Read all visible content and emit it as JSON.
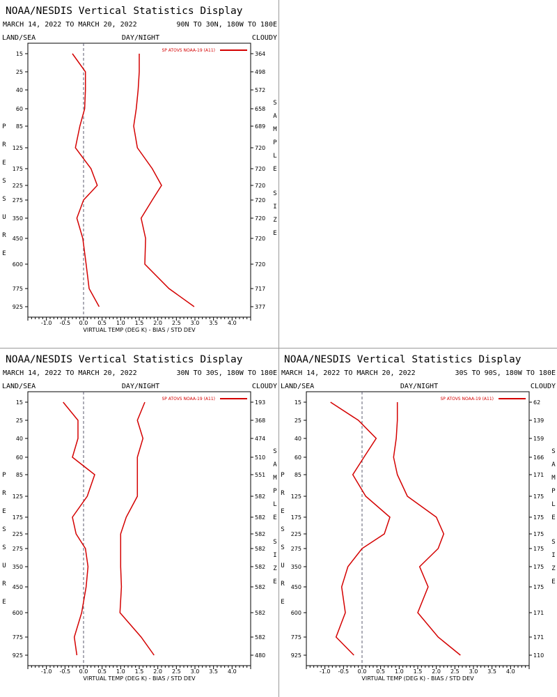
{
  "chart_data": [
    {
      "type": "line",
      "title": "NOAA/NESDIS Vertical Statistics Display",
      "date_range": "MARCH 14, 2022 TO MARCH 20, 2022",
      "region": "90N TO 30N, 180W TO 180E",
      "top_labels": {
        "left": "LAND/SEA",
        "center": "DAY/NIGHT",
        "right": "CLOUDY"
      },
      "ylabel": "PRESSURE",
      "ylabel_right": "SAMPLE SIZE",
      "xlabel": "VIRTUAL TEMP (DEG K) - BIAS / STD DEV",
      "xlim": [
        -1.5,
        4.5
      ],
      "xticks": [
        "-1.0",
        "-0.5",
        "0.0",
        "0.5",
        "1.0",
        "1.5",
        "2.0",
        "2.5",
        "3.0",
        "3.5",
        "4.0"
      ],
      "pressure_levels": [
        15,
        25,
        40,
        60,
        85,
        125,
        175,
        225,
        275,
        350,
        450,
        600,
        775,
        925
      ],
      "sample_size": [
        364,
        498,
        572,
        658,
        689,
        720,
        720,
        720,
        720,
        720,
        720,
        720,
        717,
        377
      ],
      "legend": "SP ATOVS NOAA-19 (A11)",
      "series": [
        {
          "values": [
            -0.3,
            0.05,
            0.05,
            0.03,
            -0.1,
            -0.22,
            0.2,
            0.37,
            0.0,
            -0.18,
            -0.02,
            0.07,
            0.15,
            0.42
          ]
        },
        {
          "values": [
            1.5,
            1.5,
            1.47,
            1.42,
            1.35,
            1.45,
            1.85,
            2.1,
            1.85,
            1.55,
            1.67,
            1.65,
            2.3,
            2.98
          ]
        }
      ]
    },
    {
      "type": "line",
      "title": "NOAA/NESDIS Vertical Statistics Display",
      "date_range": "MARCH 14, 2022 TO MARCH 20, 2022",
      "region": "30N TO 30S, 180W TO 180E",
      "top_labels": {
        "left": "LAND/SEA",
        "center": "DAY/NIGHT",
        "right": "CLOUDY"
      },
      "ylabel": "PRESSURE",
      "ylabel_right": "SAMPLE SIZE",
      "xlabel": "VIRTUAL TEMP (DEG K) - BIAS / STD DEV",
      "xlim": [
        -1.5,
        4.5
      ],
      "xticks": [
        "-1.0",
        "-0.5",
        "0.0",
        "0.5",
        "1.0",
        "1.5",
        "2.0",
        "2.5",
        "3.0",
        "3.5",
        "4.0"
      ],
      "pressure_levels": [
        15,
        25,
        40,
        60,
        85,
        125,
        175,
        225,
        275,
        350,
        450,
        600,
        775,
        925
      ],
      "sample_size": [
        193,
        368,
        474,
        510,
        551,
        582,
        582,
        582,
        582,
        582,
        582,
        582,
        582,
        480
      ],
      "legend": "SP ATOVS NOAA-19 (A11)",
      "series": [
        {
          "values": [
            -0.55,
            -0.15,
            -0.15,
            -0.3,
            0.3,
            0.1,
            -0.3,
            -0.2,
            0.05,
            0.12,
            0.07,
            -0.05,
            -0.25,
            -0.18
          ]
        },
        {
          "values": [
            1.65,
            1.45,
            1.6,
            1.45,
            1.45,
            1.45,
            1.15,
            1.0,
            1.0,
            1.0,
            1.02,
            0.98,
            1.55,
            1.9
          ]
        }
      ]
    },
    {
      "type": "line",
      "title": "NOAA/NESDIS Vertical Statistics Display",
      "date_range": "MARCH 14, 2022 TO MARCH 20, 2022",
      "region": "30S TO 90S, 180W TO 180E",
      "top_labels": {
        "left": "LAND/SEA",
        "center": "DAY/NIGHT",
        "right": "CLOUDY"
      },
      "ylabel": "PRESSURE",
      "ylabel_right": "SAMPLE SIZE",
      "xlabel": "VIRTUAL TEMP (DEG K) - BIAS / STD DEV",
      "xlim": [
        -1.5,
        4.5
      ],
      "xticks": [
        "-1.0",
        "-0.5",
        "0.0",
        "0.5",
        "1.0",
        "1.5",
        "2.0",
        "2.5",
        "3.0",
        "3.5",
        "4.0"
      ],
      "pressure_levels": [
        15,
        25,
        40,
        60,
        85,
        125,
        175,
        225,
        275,
        350,
        450,
        600,
        775,
        925
      ],
      "sample_size": [
        62,
        139,
        159,
        166,
        171,
        175,
        175,
        175,
        175,
        175,
        175,
        171,
        171,
        110
      ],
      "legend": "SP ATOVS NOAA-19 (A11)",
      "series": [
        {
          "values": [
            -0.85,
            -0.1,
            0.38,
            0.05,
            -0.25,
            0.1,
            0.75,
            0.6,
            0.0,
            -0.38,
            -0.55,
            -0.45,
            -0.7,
            -0.22
          ]
        },
        {
          "values": [
            0.95,
            0.95,
            0.92,
            0.85,
            0.95,
            1.22,
            2.0,
            2.2,
            2.05,
            1.55,
            1.78,
            1.5,
            2.05,
            2.65
          ]
        }
      ]
    }
  ],
  "colors": {
    "series": "#d40000",
    "axis": "#000000",
    "zero_line": "#5a5a6e",
    "divider": "#9a9a9a"
  }
}
